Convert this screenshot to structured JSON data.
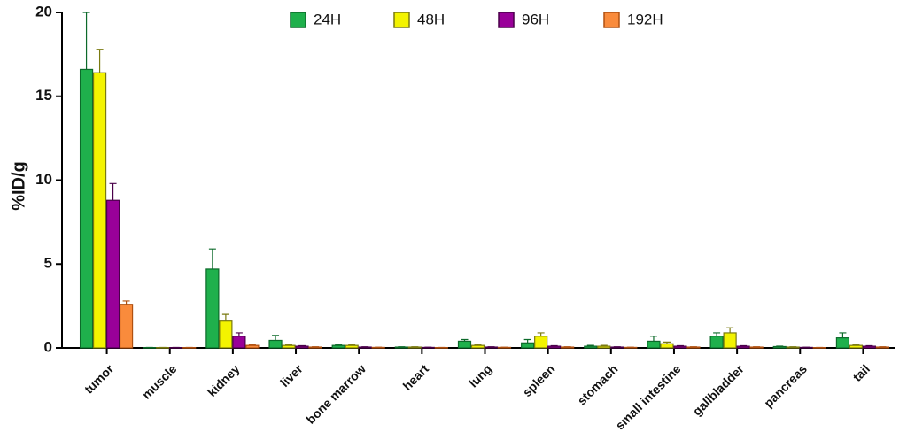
{
  "chart_data": {
    "type": "bar",
    "ylabel": "%ID/g",
    "categories": [
      "tumor",
      "muscle",
      "kidney",
      "liver",
      "bone marrow",
      "heart",
      "lung",
      "spleen",
      "stomach",
      "small intestine",
      "gallbladder",
      "pancreas",
      "tail"
    ],
    "series": [
      {
        "name": "24H",
        "color": "#1fb04c",
        "edge": "#0c6a2a",
        "values": [
          16.6,
          0.02,
          4.7,
          0.45,
          0.15,
          0.05,
          0.4,
          0.3,
          0.1,
          0.4,
          0.7,
          0.08,
          0.6
        ],
        "errors": [
          3.4,
          0.01,
          1.2,
          0.3,
          0.05,
          0.02,
          0.1,
          0.2,
          0.05,
          0.3,
          0.2,
          0.03,
          0.3
        ]
      },
      {
        "name": "48H",
        "color": "#f3f300",
        "edge": "#7a7a10",
        "values": [
          16.4,
          0.02,
          1.6,
          0.15,
          0.15,
          0.05,
          0.15,
          0.7,
          0.1,
          0.25,
          0.9,
          0.05,
          0.15
        ],
        "errors": [
          1.4,
          0.01,
          0.4,
          0.05,
          0.05,
          0.02,
          0.05,
          0.2,
          0.05,
          0.1,
          0.3,
          0.02,
          0.05
        ]
      },
      {
        "name": "96H",
        "color": "#990099",
        "edge": "#4a004a",
        "values": [
          8.8,
          0.02,
          0.7,
          0.1,
          0.05,
          0.03,
          0.05,
          0.1,
          0.05,
          0.1,
          0.1,
          0.03,
          0.1
        ],
        "errors": [
          1.0,
          0.01,
          0.2,
          0.03,
          0.02,
          0.01,
          0.02,
          0.03,
          0.02,
          0.03,
          0.03,
          0.01,
          0.03
        ]
      },
      {
        "name": "192H",
        "color": "#f98b3c",
        "edge": "#b05010",
        "values": [
          2.6,
          0.02,
          0.15,
          0.05,
          0.03,
          0.02,
          0.03,
          0.05,
          0.03,
          0.05,
          0.05,
          0.02,
          0.05
        ],
        "errors": [
          0.2,
          0.01,
          0.05,
          0.02,
          0.01,
          0.01,
          0.01,
          0.02,
          0.01,
          0.02,
          0.02,
          0.01,
          0.02
        ]
      }
    ],
    "ylim": [
      0,
      20
    ],
    "yticks": [
      0,
      5,
      10,
      15,
      20
    ],
    "legend": "top"
  }
}
